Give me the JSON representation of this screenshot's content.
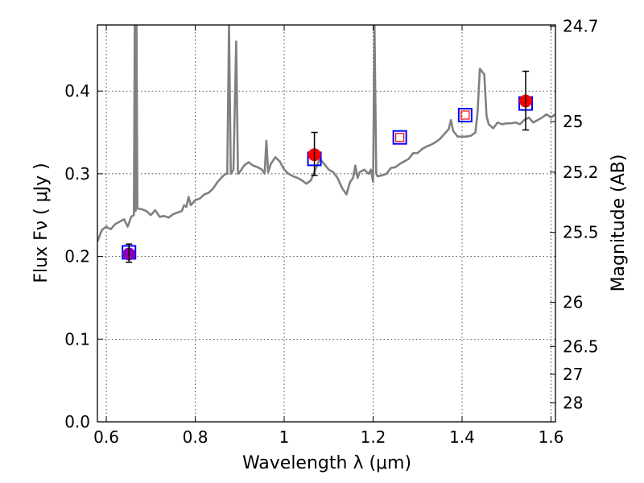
{
  "chart_data": {
    "type": "scatter",
    "title": "",
    "xlabel": "Wavelength  λ (μm)",
    "ylabel": "Flux  Fν  ( μJy )",
    "y2label": "Magnitude (AB)",
    "xlim": [
      0.58,
      1.61
    ],
    "ylim": [
      0.0,
      0.48
    ],
    "grid": true,
    "x_ticks": [
      0.6,
      0.8,
      1.0,
      1.2,
      1.4,
      1.6
    ],
    "x_tick_labels": [
      "0.6",
      "0.8",
      "1",
      "1.2",
      "1.4",
      "1.6"
    ],
    "y_ticks": [
      0.0,
      0.1,
      0.2,
      0.3,
      0.4
    ],
    "y_tick_labels": [
      "0.0",
      "0.1",
      "0.2",
      "0.3",
      "0.4"
    ],
    "y2_ticks": [
      {
        "label": "24.7",
        "flux": 0.4784
      },
      {
        "label": "25",
        "flux": 0.3631
      },
      {
        "label": "25.2",
        "flux": 0.302
      },
      {
        "label": "25.5",
        "flux": 0.2291
      },
      {
        "label": "26",
        "flux": 0.1445
      },
      {
        "label": "26.5",
        "flux": 0.0912
      },
      {
        "label": "27",
        "flux": 0.0575
      },
      {
        "label": "28",
        "flux": 0.0229
      }
    ],
    "model_spectrum": {
      "color": "#808080",
      "points": [
        [
          0.58,
          0.218
        ],
        [
          0.59,
          0.232
        ],
        [
          0.6,
          0.236
        ],
        [
          0.61,
          0.233
        ],
        [
          0.62,
          0.239
        ],
        [
          0.63,
          0.242
        ],
        [
          0.64,
          0.245
        ],
        [
          0.648,
          0.236
        ],
        [
          0.656,
          0.248
        ],
        [
          0.662,
          0.25
        ],
        [
          0.664,
          0.48
        ],
        [
          0.666,
          0.255
        ],
        [
          0.668,
          0.48
        ],
        [
          0.67,
          0.258
        ],
        [
          0.68,
          0.257
        ],
        [
          0.69,
          0.255
        ],
        [
          0.7,
          0.25
        ],
        [
          0.71,
          0.256
        ],
        [
          0.72,
          0.248
        ],
        [
          0.73,
          0.249
        ],
        [
          0.74,
          0.247
        ],
        [
          0.75,
          0.251
        ],
        [
          0.76,
          0.253
        ],
        [
          0.77,
          0.255
        ],
        [
          0.775,
          0.262
        ],
        [
          0.78,
          0.26
        ],
        [
          0.785,
          0.272
        ],
        [
          0.79,
          0.262
        ],
        [
          0.8,
          0.268
        ],
        [
          0.81,
          0.27
        ],
        [
          0.82,
          0.275
        ],
        [
          0.83,
          0.277
        ],
        [
          0.84,
          0.282
        ],
        [
          0.85,
          0.29
        ],
        [
          0.86,
          0.296
        ],
        [
          0.868,
          0.3
        ],
        [
          0.872,
          0.3
        ],
        [
          0.876,
          0.48
        ],
        [
          0.88,
          0.3
        ],
        [
          0.886,
          0.305
        ],
        [
          0.892,
          0.46
        ],
        [
          0.896,
          0.3
        ],
        [
          0.9,
          0.302
        ],
        [
          0.91,
          0.31
        ],
        [
          0.92,
          0.314
        ],
        [
          0.93,
          0.31
        ],
        [
          0.94,
          0.308
        ],
        [
          0.95,
          0.305
        ],
        [
          0.956,
          0.3
        ],
        [
          0.96,
          0.34
        ],
        [
          0.964,
          0.302
        ],
        [
          0.97,
          0.312
        ],
        [
          0.98,
          0.32
        ],
        [
          0.99,
          0.315
        ],
        [
          1.0,
          0.305
        ],
        [
          1.01,
          0.3
        ],
        [
          1.02,
          0.297
        ],
        [
          1.03,
          0.295
        ],
        [
          1.04,
          0.292
        ],
        [
          1.05,
          0.288
        ],
        [
          1.06,
          0.292
        ],
        [
          1.07,
          0.305
        ],
        [
          1.08,
          0.318
        ],
        [
          1.09,
          0.312
        ],
        [
          1.1,
          0.305
        ],
        [
          1.11,
          0.302
        ],
        [
          1.12,
          0.295
        ],
        [
          1.13,
          0.283
        ],
        [
          1.14,
          0.275
        ],
        [
          1.148,
          0.29
        ],
        [
          1.155,
          0.295
        ],
        [
          1.16,
          0.31
        ],
        [
          1.165,
          0.295
        ],
        [
          1.17,
          0.302
        ],
        [
          1.18,
          0.305
        ],
        [
          1.19,
          0.3
        ],
        [
          1.195,
          0.305
        ],
        [
          1.2,
          0.29
        ],
        [
          1.203,
          0.48
        ],
        [
          1.207,
          0.3
        ],
        [
          1.21,
          0.297
        ],
        [
          1.22,
          0.298
        ],
        [
          1.23,
          0.3
        ],
        [
          1.24,
          0.307
        ],
        [
          1.25,
          0.308
        ],
        [
          1.26,
          0.312
        ],
        [
          1.27,
          0.315
        ],
        [
          1.28,
          0.318
        ],
        [
          1.29,
          0.325
        ],
        [
          1.3,
          0.325
        ],
        [
          1.31,
          0.33
        ],
        [
          1.32,
          0.333
        ],
        [
          1.33,
          0.335
        ],
        [
          1.34,
          0.338
        ],
        [
          1.35,
          0.342
        ],
        [
          1.36,
          0.348
        ],
        [
          1.37,
          0.354
        ],
        [
          1.375,
          0.365
        ],
        [
          1.38,
          0.352
        ],
        [
          1.39,
          0.345
        ],
        [
          1.4,
          0.345
        ],
        [
          1.41,
          0.345
        ],
        [
          1.42,
          0.346
        ],
        [
          1.43,
          0.35
        ],
        [
          1.435,
          0.375
        ],
        [
          1.44,
          0.427
        ],
        [
          1.45,
          0.42
        ],
        [
          1.455,
          0.37
        ],
        [
          1.46,
          0.36
        ],
        [
          1.47,
          0.355
        ],
        [
          1.48,
          0.362
        ],
        [
          1.49,
          0.36
        ],
        [
          1.5,
          0.361
        ],
        [
          1.51,
          0.361
        ],
        [
          1.52,
          0.362
        ],
        [
          1.53,
          0.36
        ],
        [
          1.54,
          0.365
        ],
        [
          1.55,
          0.368
        ],
        [
          1.56,
          0.362
        ],
        [
          1.57,
          0.365
        ],
        [
          1.58,
          0.368
        ],
        [
          1.59,
          0.372
        ],
        [
          1.6,
          0.368
        ],
        [
          1.61,
          0.372
        ]
      ]
    },
    "series": [
      {
        "marker": "circle",
        "color": "#ff0000",
        "points": [
          {
            "x": 1.068,
            "y": 0.323,
            "yerr": [
              0.298,
              0.35
            ]
          },
          {
            "x": 1.543,
            "y": 0.388,
            "yerr": [
              0.353,
              0.424
            ]
          }
        ]
      },
      {
        "marker": "circle",
        "color": "#8b00b4",
        "points": [
          {
            "x": 0.651,
            "y": 0.203,
            "yerr": [
              0.193,
              0.215
            ]
          }
        ]
      },
      {
        "marker": "open-square",
        "color": "#0000ff",
        "points": [
          {
            "x": 0.651,
            "y": 0.205
          },
          {
            "x": 1.068,
            "y": 0.318
          },
          {
            "x": 1.26,
            "y": 0.344
          },
          {
            "x": 1.407,
            "y": 0.371
          },
          {
            "x": 1.543,
            "y": 0.385
          }
        ]
      },
      {
        "marker": "open-square-small",
        "color": "#ff0000",
        "points": [
          {
            "x": 1.26,
            "y": 0.344
          },
          {
            "x": 1.407,
            "y": 0.371
          }
        ]
      }
    ]
  }
}
